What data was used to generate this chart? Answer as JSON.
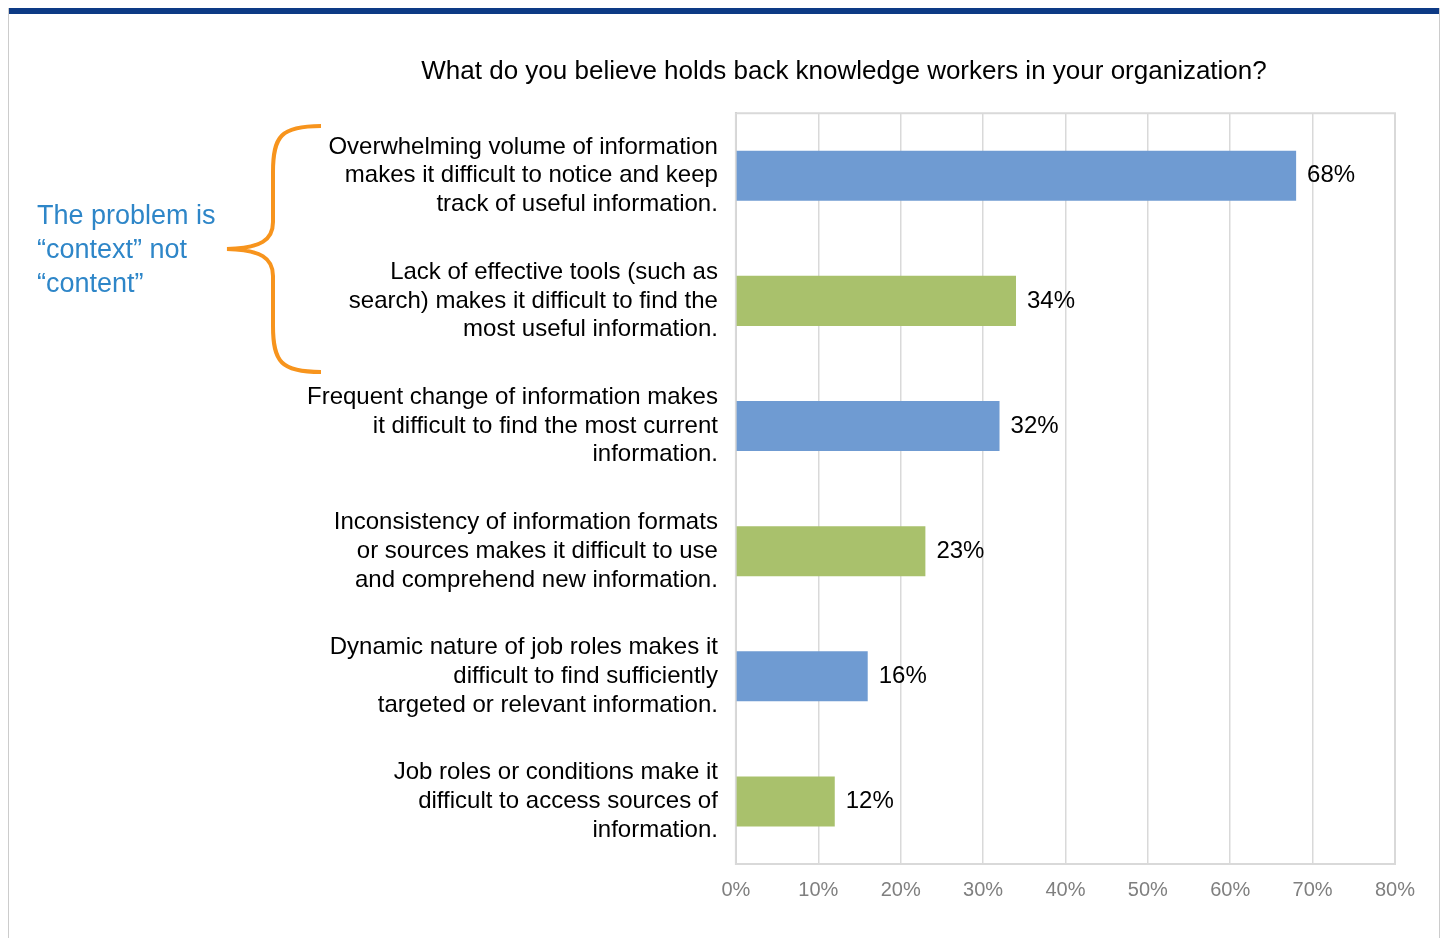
{
  "chart_data": {
    "type": "bar",
    "orientation": "horizontal",
    "title": "What do you believe holds back knowledge workers in your organization?",
    "categories": [
      "Overwhelming volume of information makes it difficult to notice and keep track of useful information.",
      "Lack of effective tools (such as search) makes it difficult to find the most useful information.",
      "Frequent change of information makes it difficult to find the most current information.",
      "Inconsistency of information formats or sources makes it difficult to use and comprehend new information.",
      "Dynamic nature of job roles makes it difficult to find sufficiently targeted or relevant information.",
      "Job roles or conditions make it difficult to access sources of information."
    ],
    "values": [
      68,
      34,
      32,
      23,
      16,
      12
    ],
    "colors": [
      "#6f9bd2",
      "#a9c16c",
      "#6f9bd2",
      "#a9c16c",
      "#6f9bd2",
      "#a9c16c"
    ],
    "value_labels": [
      "68%",
      "34%",
      "32%",
      "23%",
      "16%",
      "12%"
    ],
    "xlim": [
      0,
      80
    ],
    "xticks": [
      {
        "value": 0,
        "label": "0%"
      },
      {
        "value": 10,
        "label": "10%"
      },
      {
        "value": 20,
        "label": "20%"
      },
      {
        "value": 30,
        "label": "30%"
      },
      {
        "value": 40,
        "label": "40%"
      },
      {
        "value": 50,
        "label": "50%"
      },
      {
        "value": 60,
        "label": "60%"
      },
      {
        "value": 70,
        "label": "70%"
      },
      {
        "value": 80,
        "label": "80%"
      }
    ],
    "grid": "x",
    "annotations": [
      "The problem is “context” not “content”"
    ]
  }
}
